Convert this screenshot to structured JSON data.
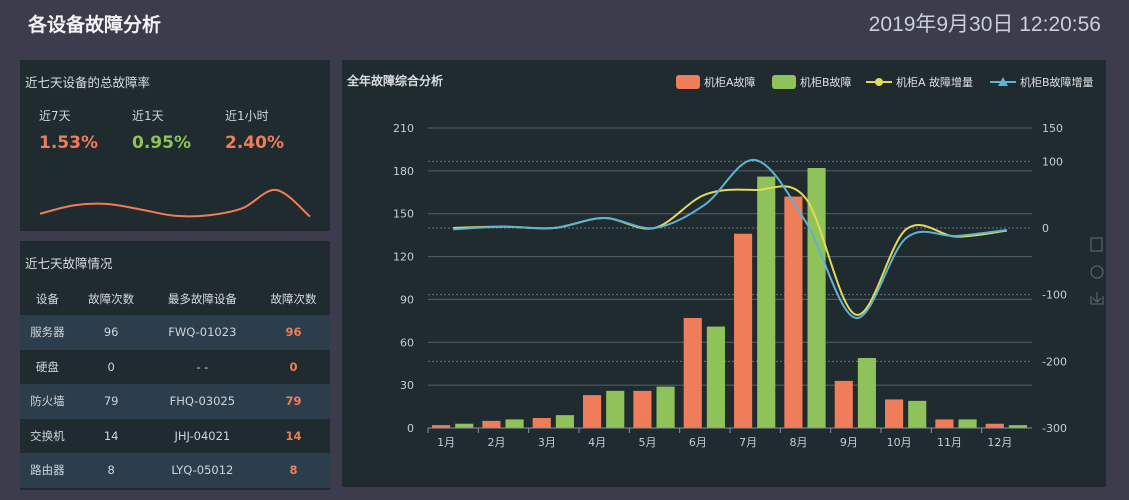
{
  "header": {
    "title": "各设备故障分析",
    "datetime": "2019年9月30日 12:20:56"
  },
  "rate_panel": {
    "title": "近七天设备的总故障率",
    "stats": [
      {
        "label": "近7天",
        "value": "1.53%",
        "color": "#f07d5a"
      },
      {
        "label": "近1天",
        "value": "0.95%",
        "color": "#8fc35a"
      },
      {
        "label": "近1小时",
        "value": "2.40%",
        "color": "#f07d5a"
      }
    ],
    "trend": [
      0.15,
      0.45,
      0.5,
      0.3,
      0.08,
      0.1,
      0.35,
      1.0,
      0.05
    ],
    "trend_color": "#f07d5a"
  },
  "fault_panel": {
    "title": "近七天故障情况",
    "headers": [
      "设备",
      "故障次数",
      "最多故障设备",
      "故障次数"
    ],
    "rows": [
      [
        "服务器",
        "96",
        "FWQ-01023",
        "96"
      ],
      [
        "硬盘",
        "0",
        "- -",
        "0"
      ],
      [
        "防火墙",
        "79",
        "FHQ-03025",
        "79"
      ],
      [
        "交换机",
        "14",
        "JHJ-04021",
        "14"
      ],
      [
        "路由器",
        "8",
        "LYQ-05012",
        "8"
      ]
    ]
  },
  "chart_data": {
    "type": "bar",
    "title": "全年故障综合分析",
    "categories": [
      "1月",
      "2月",
      "3月",
      "4月",
      "5月",
      "6月",
      "7月",
      "8月",
      "9月",
      "10月",
      "11月",
      "12月"
    ],
    "series": [
      {
        "name": "机柜A故障",
        "type": "bar",
        "axis": "left",
        "color": "#f07d5a",
        "values": [
          2,
          5,
          7,
          23,
          26,
          77,
          136,
          162,
          33,
          20,
          6,
          3
        ]
      },
      {
        "name": "机柜B故障",
        "type": "bar",
        "axis": "left",
        "color": "#8fc35a",
        "values": [
          3,
          6,
          9,
          26,
          29,
          71,
          176,
          182,
          49,
          19,
          6,
          2
        ]
      },
      {
        "name": "机柜A 故障增量",
        "type": "line",
        "axis": "right",
        "color": "#e3d95a",
        "values": [
          0,
          2,
          0,
          15,
          0,
          50,
          57,
          45,
          -130,
          -2,
          -13,
          -4
        ]
      },
      {
        "name": "机柜B故障增量",
        "type": "line",
        "axis": "right",
        "color": "#5fb3d1",
        "values": [
          -2,
          2,
          0,
          15,
          0,
          35,
          102,
          10,
          -135,
          -15,
          -12,
          -3
        ]
      }
    ],
    "yleft": {
      "min": 0,
      "max": 210,
      "ticks": [
        0,
        30,
        60,
        90,
        120,
        150,
        180,
        210
      ]
    },
    "yright": {
      "min": -300,
      "max": 150,
      "ticks": [
        -300,
        -200,
        -100,
        0,
        100,
        150
      ]
    },
    "legend": "top-right",
    "grid": true
  },
  "toolbox": [
    "data-view-icon",
    "restore-icon",
    "save-image-icon"
  ]
}
